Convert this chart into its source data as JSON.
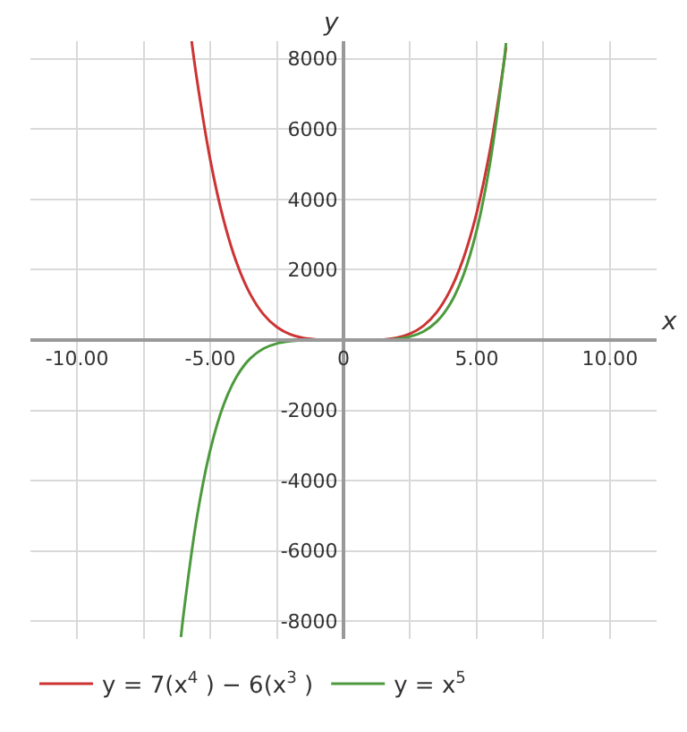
{
  "chart_data": {
    "type": "line",
    "xlabel": "x",
    "ylabel": "y",
    "xlim": [
      -11.75,
      11.75
    ],
    "ylim": [
      -8500,
      8500
    ],
    "xticks": [
      {
        "value": -10,
        "label": "-10.00"
      },
      {
        "value": -7.5,
        "label": null
      },
      {
        "value": -5,
        "label": "-5.00"
      },
      {
        "value": -2.5,
        "label": null
      },
      0,
      {
        "value": 2.5,
        "label": null
      },
      {
        "value": 5,
        "label": "5.00"
      },
      {
        "value": 7.5,
        "label": null
      },
      {
        "value": 10,
        "label": "10.00"
      }
    ],
    "yticks": [
      -8000,
      -6000,
      -4000,
      -2000,
      2000,
      4000,
      6000,
      8000
    ],
    "grid": true,
    "legend": "bottom left",
    "marker": "none",
    "line_style": "solid",
    "series": [
      {
        "name": "y = 7(x$^{4}$ ) − 6(x$^{3}$ )",
        "color": "#cc3333",
        "x": [
          -5.7,
          -5.5,
          -5,
          -4.5,
          -4,
          -3.5,
          -3,
          -2.5,
          -2,
          -1.5,
          -1,
          -0.5,
          0,
          0.5,
          1,
          1.5,
          2,
          2.5,
          3,
          3.5,
          4,
          4.5,
          5,
          5.5,
          6,
          6.1
        ],
        "values": [
          8500,
          7404,
          5125,
          3417,
          2176,
          1308,
          729,
          367,
          160,
          55.7,
          13,
          1.19,
          0,
          -0.31,
          1,
          15.2,
          64,
          179.7,
          405,
          793,
          1408,
          2324,
          3625,
          5407,
          7776,
          8330
        ]
      },
      {
        "name": "y = x$^{5}$",
        "color": "#4c9a3c",
        "x": [
          -6.1,
          -6,
          -5.5,
          -5,
          -4.5,
          -4,
          -3.5,
          -3,
          -2.5,
          -2,
          -1.5,
          -1,
          -0.5,
          0,
          0.5,
          1,
          1.5,
          2,
          2.5,
          3,
          3.5,
          4,
          4.5,
          5,
          5.5,
          6,
          6.1
        ],
        "values": [
          -8446,
          -7776,
          -5033,
          -3125,
          -1845,
          -1024,
          -525,
          -243,
          -97.7,
          -32,
          -7.6,
          -1,
          -0.03,
          0,
          0.03,
          1,
          7.6,
          32,
          97.7,
          243,
          525,
          1024,
          1845,
          3125,
          5033,
          7776,
          8446
        ]
      }
    ]
  }
}
